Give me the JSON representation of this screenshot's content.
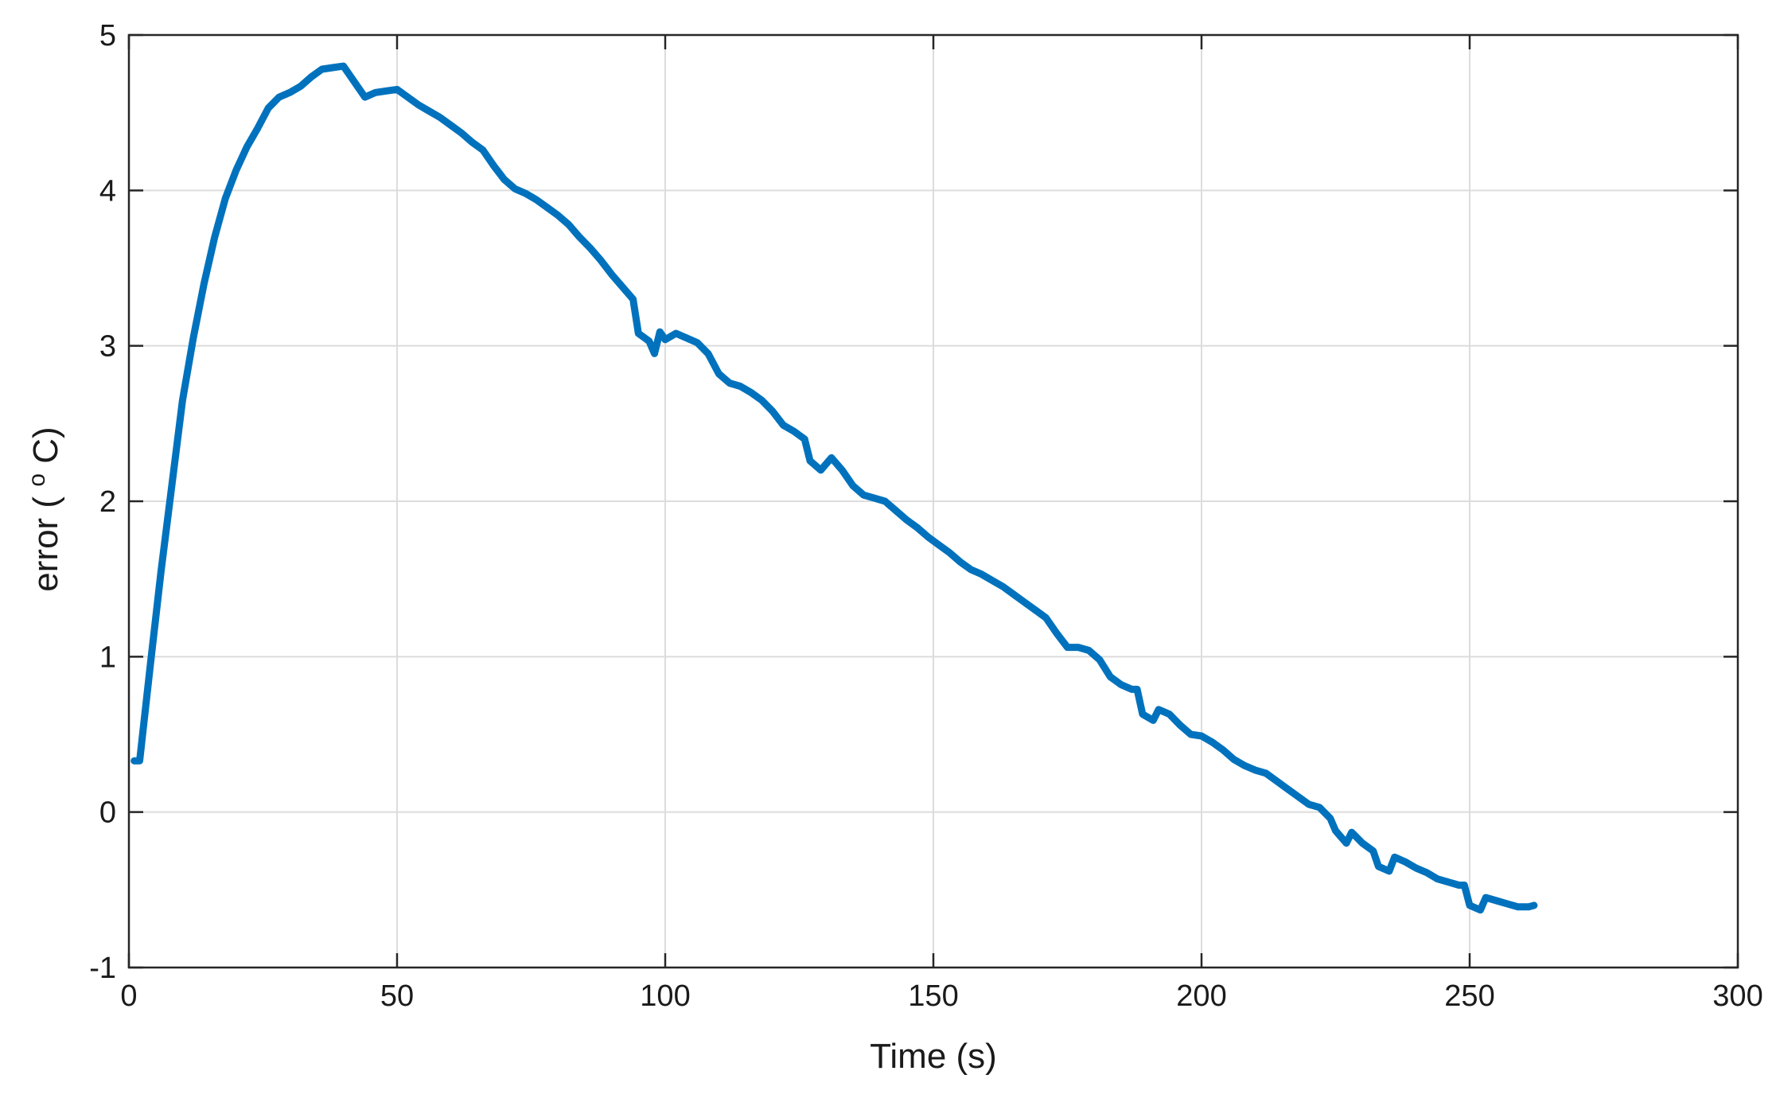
{
  "chart_data": {
    "type": "line",
    "title": "",
    "xlabel": "Time (s)",
    "ylabel_parts": [
      "error (",
      "o",
      "C)"
    ],
    "xlim": [
      0,
      300
    ],
    "ylim": [
      -1,
      5
    ],
    "xticks": [
      0,
      50,
      100,
      150,
      200,
      250,
      300
    ],
    "yticks": [
      -1,
      0,
      1,
      2,
      3,
      4,
      5
    ],
    "xtick_labels": [
      "0",
      "50",
      "100",
      "150",
      "200",
      "250",
      "300"
    ],
    "ytick_labels": [
      "-1",
      "0",
      "1",
      "2",
      "3",
      "4",
      "5"
    ],
    "grid": true,
    "legend": "none",
    "colors": {
      "series": "#0072BD",
      "axis": "#262626",
      "grid": "#dcdcdc"
    },
    "series": [
      {
        "color": "#0072BD",
        "points": [
          [
            1,
            0.33
          ],
          [
            2,
            0.33
          ],
          [
            4,
            0.95
          ],
          [
            6,
            1.55
          ],
          [
            8,
            2.1
          ],
          [
            10,
            2.65
          ],
          [
            12,
            3.05
          ],
          [
            14,
            3.4
          ],
          [
            16,
            3.7
          ],
          [
            18,
            3.95
          ],
          [
            20,
            4.13
          ],
          [
            22,
            4.28
          ],
          [
            24,
            4.4
          ],
          [
            26,
            4.53
          ],
          [
            28,
            4.6
          ],
          [
            30,
            4.63
          ],
          [
            32,
            4.67
          ],
          [
            34,
            4.73
          ],
          [
            36,
            4.78
          ],
          [
            38,
            4.79
          ],
          [
            40,
            4.8
          ],
          [
            42,
            4.7
          ],
          [
            44,
            4.6
          ],
          [
            46,
            4.63
          ],
          [
            48,
            4.64
          ],
          [
            50,
            4.65
          ],
          [
            52,
            4.6
          ],
          [
            54,
            4.55
          ],
          [
            56,
            4.51
          ],
          [
            58,
            4.47
          ],
          [
            60,
            4.42
          ],
          [
            62,
            4.37
          ],
          [
            64,
            4.31
          ],
          [
            66,
            4.26
          ],
          [
            68,
            4.16
          ],
          [
            70,
            4.07
          ],
          [
            72,
            4.01
          ],
          [
            74,
            3.98
          ],
          [
            76,
            3.94
          ],
          [
            78,
            3.89
          ],
          [
            80,
            3.84
          ],
          [
            82,
            3.78
          ],
          [
            84,
            3.7
          ],
          [
            86,
            3.63
          ],
          [
            88,
            3.55
          ],
          [
            90,
            3.46
          ],
          [
            92,
            3.38
          ],
          [
            94,
            3.3
          ],
          [
            95,
            3.08
          ],
          [
            97,
            3.03
          ],
          [
            98,
            2.95
          ],
          [
            99,
            3.09
          ],
          [
            100,
            3.04
          ],
          [
            102,
            3.08
          ],
          [
            104,
            3.05
          ],
          [
            106,
            3.02
          ],
          [
            108,
            2.95
          ],
          [
            110,
            2.82
          ],
          [
            112,
            2.76
          ],
          [
            114,
            2.74
          ],
          [
            116,
            2.7
          ],
          [
            118,
            2.65
          ],
          [
            120,
            2.58
          ],
          [
            122,
            2.49
          ],
          [
            124,
            2.45
          ],
          [
            126,
            2.4
          ],
          [
            127,
            2.26
          ],
          [
            129,
            2.2
          ],
          [
            131,
            2.28
          ],
          [
            133,
            2.2
          ],
          [
            135,
            2.1
          ],
          [
            137,
            2.04
          ],
          [
            139,
            2.02
          ],
          [
            141,
            2.0
          ],
          [
            143,
            1.94
          ],
          [
            145,
            1.88
          ],
          [
            147,
            1.83
          ],
          [
            149,
            1.77
          ],
          [
            151,
            1.72
          ],
          [
            153,
            1.67
          ],
          [
            155,
            1.61
          ],
          [
            157,
            1.56
          ],
          [
            159,
            1.53
          ],
          [
            161,
            1.49
          ],
          [
            163,
            1.45
          ],
          [
            165,
            1.4
          ],
          [
            167,
            1.35
          ],
          [
            169,
            1.3
          ],
          [
            171,
            1.25
          ],
          [
            173,
            1.15
          ],
          [
            175,
            1.06
          ],
          [
            177,
            1.06
          ],
          [
            179,
            1.04
          ],
          [
            181,
            0.98
          ],
          [
            183,
            0.87
          ],
          [
            185,
            0.82
          ],
          [
            187,
            0.79
          ],
          [
            188,
            0.79
          ],
          [
            189,
            0.63
          ],
          [
            191,
            0.59
          ],
          [
            192,
            0.66
          ],
          [
            194,
            0.63
          ],
          [
            196,
            0.56
          ],
          [
            198,
            0.5
          ],
          [
            200,
            0.49
          ],
          [
            202,
            0.45
          ],
          [
            204,
            0.4
          ],
          [
            206,
            0.34
          ],
          [
            208,
            0.3
          ],
          [
            210,
            0.27
          ],
          [
            212,
            0.25
          ],
          [
            214,
            0.2
          ],
          [
            216,
            0.15
          ],
          [
            218,
            0.1
          ],
          [
            220,
            0.05
          ],
          [
            222,
            0.03
          ],
          [
            224,
            -0.04
          ],
          [
            225,
            -0.12
          ],
          [
            227,
            -0.2
          ],
          [
            228,
            -0.13
          ],
          [
            230,
            -0.2
          ],
          [
            232,
            -0.25
          ],
          [
            233,
            -0.35
          ],
          [
            235,
            -0.38
          ],
          [
            236,
            -0.29
          ],
          [
            238,
            -0.32
          ],
          [
            240,
            -0.36
          ],
          [
            242,
            -0.39
          ],
          [
            244,
            -0.43
          ],
          [
            246,
            -0.45
          ],
          [
            248,
            -0.47
          ],
          [
            249,
            -0.47
          ],
          [
            250,
            -0.6
          ],
          [
            252,
            -0.63
          ],
          [
            253,
            -0.55
          ],
          [
            255,
            -0.57
          ],
          [
            257,
            -0.59
          ],
          [
            259,
            -0.61
          ],
          [
            261,
            -0.61
          ],
          [
            262,
            -0.6
          ]
        ]
      }
    ]
  }
}
